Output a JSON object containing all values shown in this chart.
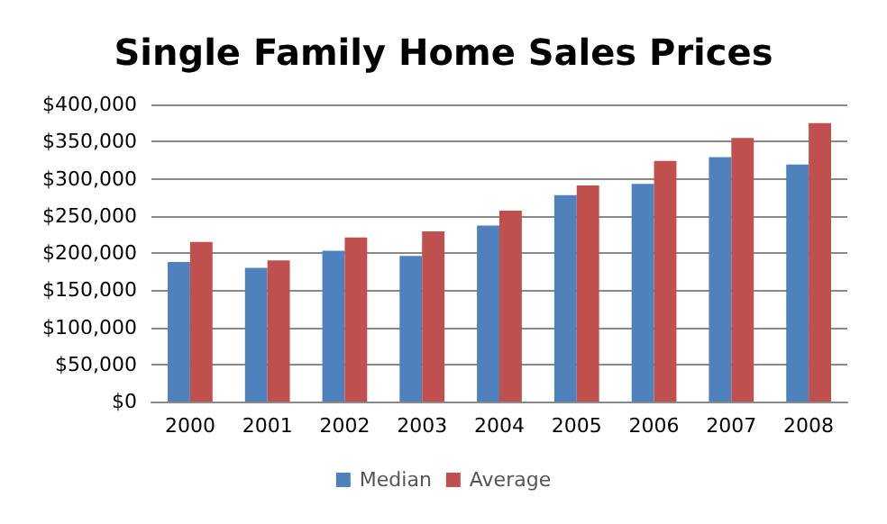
{
  "chart_data": {
    "type": "bar",
    "title": "Single Family Home Sales Prices",
    "categories": [
      "2000",
      "2001",
      "2002",
      "2003",
      "2004",
      "2005",
      "2006",
      "2007",
      "2008"
    ],
    "series": [
      {
        "name": "Median",
        "color": "#4f81bd",
        "values": [
          188000,
          180000,
          203000,
          196000,
          237000,
          278000,
          293000,
          329000,
          319000
        ]
      },
      {
        "name": "Average",
        "color": "#c0504d",
        "values": [
          215000,
          190000,
          221000,
          229000,
          257000,
          291000,
          324000,
          355000,
          375000
        ]
      }
    ],
    "ylim": [
      0,
      400000
    ],
    "yticks": [
      {
        "value": 0,
        "label": "$0"
      },
      {
        "value": 50000,
        "label": "$50,000"
      },
      {
        "value": 100000,
        "label": "$100,000"
      },
      {
        "value": 150000,
        "label": "$150,000"
      },
      {
        "value": 200000,
        "label": "$200,000"
      },
      {
        "value": 250000,
        "label": "$250,000"
      },
      {
        "value": 300000,
        "label": "$300,000"
      },
      {
        "value": 350000,
        "label": "$350,000"
      },
      {
        "value": 400000,
        "label": "$400,000"
      }
    ],
    "grid": "y",
    "legend": "bottom"
  }
}
